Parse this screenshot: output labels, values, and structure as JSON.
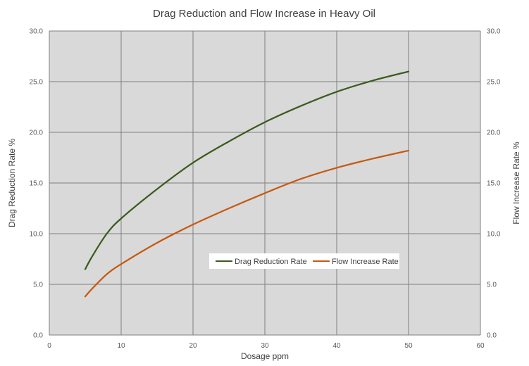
{
  "chart_data": {
    "type": "line",
    "title": "Drag Reduction and Flow Increase in Heavy Oil",
    "xlabel": "Dosage  ppm",
    "ylabel": "Drag Reduction Rate  %",
    "y2label": "Flow Increase  Rate  %",
    "xlim": [
      0,
      60
    ],
    "ylim": [
      0,
      30
    ],
    "y2lim": [
      0,
      30
    ],
    "x_ticks": [
      "0",
      "10",
      "20",
      "30",
      "40",
      "50",
      "60"
    ],
    "y_ticks": [
      "0.0",
      "5.0",
      "10.0",
      "15.0",
      "20.0",
      "25.0",
      "30.0"
    ],
    "y2_ticks": [
      "0.0",
      "5.0",
      "10.0",
      "15.0",
      "20.0",
      "25.0",
      "30.0"
    ],
    "grid": true,
    "legend_position": "center-right, inside plot",
    "series": [
      {
        "name": "Drag Reduction Rate",
        "color": "#3d5a1e",
        "axis": "left",
        "x": [
          5,
          6,
          8,
          10,
          15,
          20,
          25,
          30,
          35,
          40,
          45,
          50
        ],
        "y": [
          6.5,
          7.8,
          10.0,
          11.5,
          14.4,
          17.0,
          19.1,
          21.0,
          22.6,
          24.0,
          25.1,
          26.0
        ]
      },
      {
        "name": "Flow Increase Rate",
        "color": "#c55a11",
        "axis": "right",
        "x": [
          5,
          6,
          8,
          10,
          15,
          20,
          25,
          30,
          35,
          40,
          45,
          50
        ],
        "y": [
          3.8,
          4.6,
          6.0,
          7.0,
          9.1,
          10.9,
          12.5,
          14.0,
          15.4,
          16.5,
          17.4,
          18.2
        ]
      }
    ]
  }
}
